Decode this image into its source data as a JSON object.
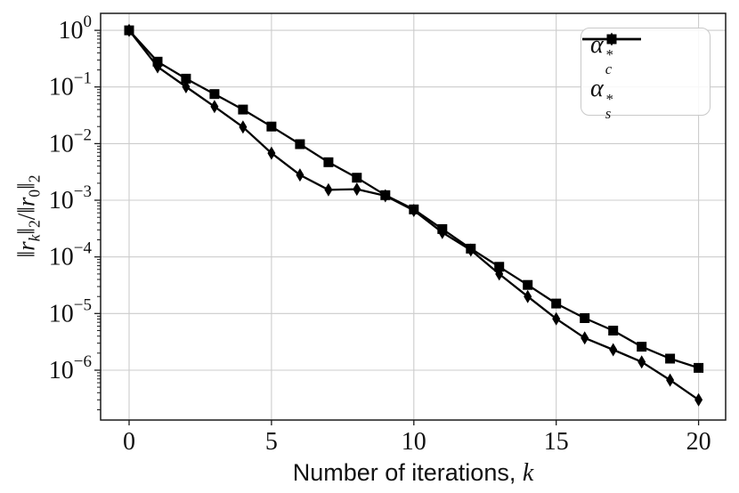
{
  "figure": {
    "background": "#ffffff"
  },
  "chart_data": {
    "type": "line",
    "yscale": "log",
    "title": "",
    "xlabel": {
      "text": "Number of iterations, ",
      "var": "k"
    },
    "ylabel_parts": [
      "‖",
      "r",
      "k",
      "‖",
      "2",
      "/",
      "‖",
      "r",
      "0",
      "‖",
      "2"
    ],
    "x": [
      0,
      1,
      2,
      3,
      4,
      5,
      6,
      7,
      8,
      9,
      10,
      11,
      12,
      13,
      14,
      15,
      16,
      17,
      18,
      19,
      20
    ],
    "series": [
      {
        "name": "alpha_c_star",
        "label": {
          "base": "α",
          "sup": "*",
          "sub": "c"
        },
        "marker": "square",
        "color": "#000000",
        "values": [
          1.0,
          0.28,
          0.14,
          0.075,
          0.04,
          0.02,
          0.0098,
          0.0047,
          0.0025,
          0.00123,
          0.00069,
          0.00031,
          0.00014,
          6.7e-05,
          3.2e-05,
          1.5e-05,
          8.3e-06,
          5e-06,
          2.6e-06,
          1.6e-06,
          1.1e-06
        ]
      },
      {
        "name": "alpha_s_star",
        "label": {
          "base": "α",
          "sup": "*",
          "sub": "s"
        },
        "marker": "diamond",
        "color": "#000000",
        "values": [
          1.0,
          0.227,
          0.101,
          0.045,
          0.0196,
          0.0068,
          0.0028,
          0.00153,
          0.00157,
          0.0012,
          0.00066,
          0.00027,
          0.000132,
          5e-05,
          2e-05,
          8.1e-06,
          3.7e-06,
          2.3e-06,
          1.4e-06,
          6.7e-07,
          3e-07
        ]
      }
    ],
    "x_ticks": [
      0,
      5,
      10,
      15,
      20
    ],
    "y_tick_exponents": [
      0,
      -1,
      -2,
      -3,
      -4,
      -5,
      -6
    ],
    "xlim": [
      -1,
      20.95
    ],
    "ylim_log": [
      -6.88,
      0.3
    ],
    "grid": true,
    "legend_position": "upper right",
    "colors": {
      "line": "#000000",
      "grid": "#cccccc",
      "spine": "#1a1a1a",
      "background": "#ffffff",
      "legend_border": "#c9c9c9",
      "tick_label": "#111111"
    }
  }
}
